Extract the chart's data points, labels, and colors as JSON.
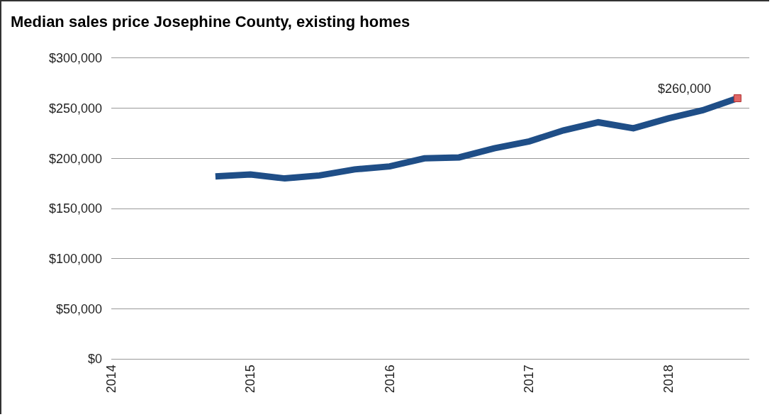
{
  "chart_data": {
    "type": "line",
    "title": "Median sales price Josephine County, existing homes",
    "x": [
      "2014-10",
      "2015-01",
      "2015-04",
      "2015-07",
      "2015-10",
      "2016-01",
      "2016-04",
      "2016-07",
      "2016-10",
      "2017-01",
      "2017-04",
      "2017-07",
      "2017-10",
      "2018-01",
      "2018-04",
      "2018-07"
    ],
    "series": [
      {
        "color": "#1f4e87",
        "values": [
          182000,
          184000,
          180000,
          183000,
          189000,
          192000,
          200000,
          201000,
          210000,
          217000,
          228000,
          236000,
          230000,
          240000,
          248000,
          260000
        ]
      },
      {
        "type": "scatter",
        "color": "#e06666",
        "marker": "square",
        "x": [
          "2018-07"
        ],
        "values": [
          260000
        ]
      }
    ],
    "annotations": [
      {
        "text": "$260,000",
        "x": "2018-07",
        "y": 260000
      }
    ],
    "xlim": [
      "2014",
      "2018-08"
    ],
    "xticks": [
      "2014",
      "2015",
      "2016",
      "2017",
      "2018"
    ],
    "ylim": [
      0,
      300000
    ],
    "yticks": [
      {
        "value": 0,
        "label": "$0"
      },
      {
        "value": 50000,
        "label": "$50,000"
      },
      {
        "value": 100000,
        "label": "$100,000"
      },
      {
        "value": 150000,
        "label": "$150,000"
      },
      {
        "value": 200000,
        "label": "$200,000"
      },
      {
        "value": 250000,
        "label": "$250,000"
      },
      {
        "value": 300000,
        "label": "$300,000"
      }
    ],
    "grid": "y",
    "marker": "none",
    "line_style": "solid"
  }
}
